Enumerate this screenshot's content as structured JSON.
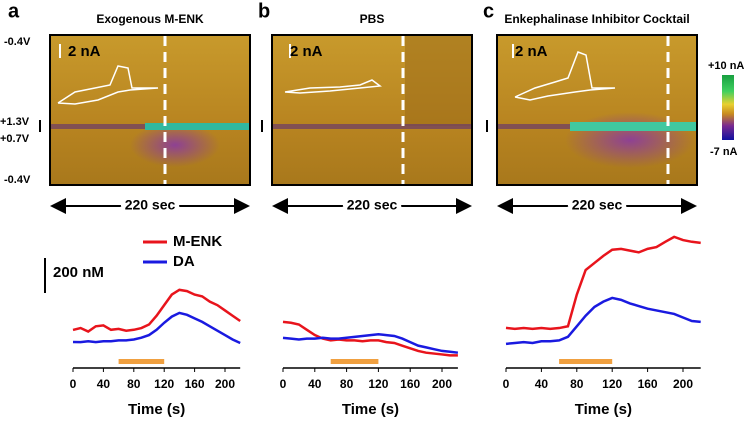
{
  "chart_data": [
    {
      "type": "line",
      "label": "a",
      "title": "Exogenous M-ENK",
      "cv_scale": "2 nA",
      "time_span": "220 sec",
      "x": [
        0,
        10,
        20,
        30,
        40,
        50,
        60,
        70,
        80,
        90,
        100,
        110,
        120,
        130,
        140,
        150,
        160,
        170,
        180,
        190,
        200,
        210,
        220
      ],
      "series": [
        {
          "name": "M-ENK",
          "color": "#e8141c",
          "values": [
            99,
            110,
            90,
            120,
            125,
            100,
            105,
            95,
            100,
            110,
            130,
            180,
            240,
            300,
            327,
            320,
            300,
            290,
            260,
            240,
            210,
            180,
            150
          ]
        },
        {
          "name": "DA",
          "color": "#1a1ae0",
          "values": [
            31,
            30,
            35,
            30,
            35,
            35,
            40,
            40,
            45,
            55,
            70,
            100,
            140,
            175,
            196,
            185,
            165,
            145,
            120,
            95,
            70,
            45,
            25
          ]
        }
      ],
      "highlight": [
        60,
        120
      ],
      "xlim": [
        0,
        220
      ],
      "ylim": [
        -100,
        650
      ],
      "xticks": [
        0,
        40,
        80,
        120,
        160,
        200
      ],
      "xlabel": "Time (s)"
    },
    {
      "type": "line",
      "label": "b",
      "title": "PBS",
      "cv_scale": "2 nA",
      "time_span": "220 sec",
      "x": [
        0,
        10,
        20,
        30,
        40,
        50,
        60,
        70,
        80,
        90,
        100,
        110,
        120,
        130,
        140,
        150,
        160,
        170,
        180,
        190,
        200,
        210,
        220
      ],
      "series": [
        {
          "name": "M-ENK",
          "color": "#e8141c",
          "values": [
            145,
            140,
            130,
            100,
            70,
            50,
            40,
            45,
            40,
            40,
            35,
            40,
            40,
            30,
            25,
            10,
            -5,
            -20,
            -30,
            -35,
            -40,
            -45,
            -45
          ]
        },
        {
          "name": "DA",
          "color": "#1a1ae0",
          "values": [
            54,
            50,
            45,
            50,
            50,
            55,
            50,
            50,
            55,
            60,
            65,
            70,
            75,
            70,
            65,
            50,
            30,
            10,
            0,
            -10,
            -20,
            -25,
            -30
          ]
        }
      ],
      "highlight": [
        60,
        120
      ],
      "xlim": [
        0,
        220
      ],
      "ylim": [
        -100,
        650
      ],
      "xticks": [
        0,
        40,
        80,
        120,
        160,
        200
      ],
      "xlabel": "Time (s)"
    },
    {
      "type": "line",
      "label": "c",
      "title": "Enkephalinase Inhibitor Cocktail",
      "cv_scale": "2 nA",
      "time_span": "220 sec",
      "x": [
        0,
        10,
        20,
        30,
        40,
        50,
        60,
        70,
        80,
        90,
        100,
        110,
        120,
        130,
        140,
        150,
        160,
        170,
        180,
        190,
        200,
        210,
        220
      ],
      "series": [
        {
          "name": "M-ENK",
          "color": "#e8141c",
          "values": [
            111,
            105,
            110,
            105,
            110,
            105,
            110,
            120,
            300,
            440,
            480,
            520,
            555,
            560,
            550,
            540,
            560,
            570,
            600,
            628,
            610,
            600,
            594
          ]
        },
        {
          "name": "DA",
          "color": "#1a1ae0",
          "values": [
            20,
            25,
            30,
            25,
            35,
            35,
            40,
            60,
            120,
            180,
            230,
            260,
            281,
            270,
            250,
            235,
            220,
            210,
            200,
            190,
            170,
            150,
            145
          ]
        }
      ],
      "highlight": [
        60,
        120
      ],
      "xlim": [
        0,
        220
      ],
      "ylim": [
        -100,
        650
      ],
      "xticks": [
        0,
        40,
        80,
        120,
        160,
        200
      ],
      "xlabel": "Time (s)"
    }
  ],
  "annotations": {
    "voltages": [
      "-0.4V",
      "+1.3V",
      "+0.7V",
      "-0.4V"
    ],
    "colorbar": [
      "+10 nA",
      "-7 nA"
    ],
    "scale_bar": "200 nM"
  }
}
